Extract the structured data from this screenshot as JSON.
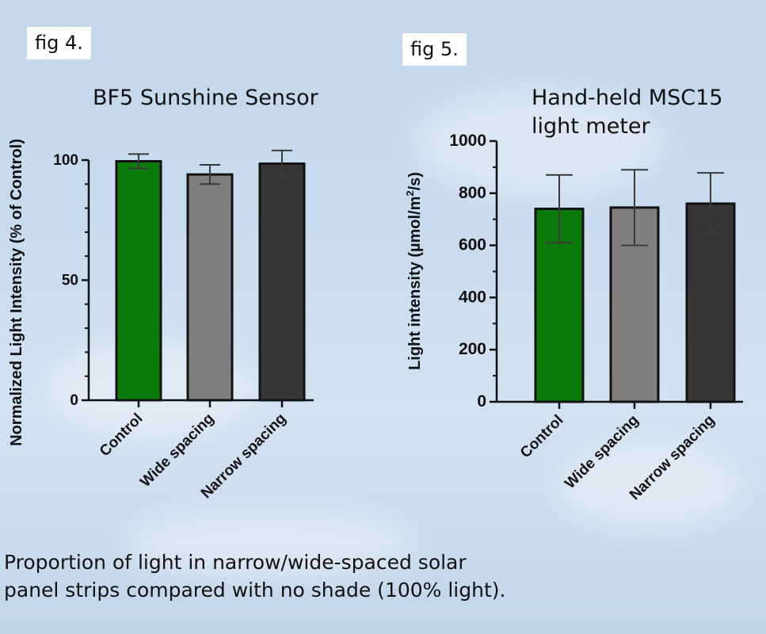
{
  "background": {
    "sky_top": "#c4d7ea",
    "sky_bottom": "#c2d6ea"
  },
  "figures": {
    "fig4_label": "fig 4.",
    "fig5_label": "fig 5."
  },
  "caption": {
    "line1": "Proportion of light in narrow/wide-spaced solar",
    "line2": "panel strips compared with no shade (100% light)."
  },
  "chart_data": [
    {
      "type": "bar",
      "title": "BF5 Sunshine Sensor",
      "ylabel": "Normalized Light Intensity (% of Control)",
      "xlabel": "",
      "categories": [
        "Control",
        "Wide spacing",
        "Narrow spacing"
      ],
      "values": [
        99.5,
        94,
        98.5
      ],
      "error": [
        3,
        4,
        5.5
      ],
      "colors": [
        "#0a7a0a",
        "#7f7f7f",
        "#363636"
      ],
      "ylim": [
        0,
        100
      ],
      "yticks": [
        0,
        50,
        100
      ],
      "grid": false,
      "legend": "none"
    },
    {
      "type": "bar",
      "title_line1": "Hand-held MSC15",
      "title_line2": "light meter",
      "ylabel_main": "Light intensity (µmol/m",
      "ylabel_sup": "2",
      "ylabel_tail": "/s)",
      "xlabel": "",
      "categories": [
        "Control",
        "Wide spacing",
        "Narrow spacing"
      ],
      "values": [
        740,
        745,
        760
      ],
      "error": [
        130,
        145,
        118
      ],
      "colors": [
        "#0a7a0a",
        "#7f7f7f",
        "#363636"
      ],
      "ylim": [
        0,
        1000
      ],
      "yticks": [
        0,
        200,
        400,
        600,
        800,
        1000
      ],
      "grid": false,
      "legend": "none"
    }
  ]
}
